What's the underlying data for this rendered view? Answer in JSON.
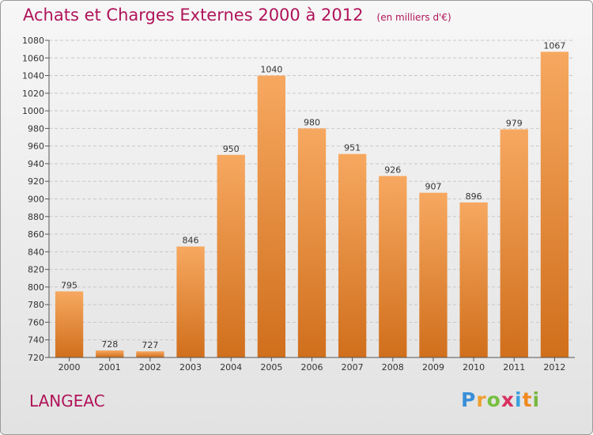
{
  "title": "Achats et Charges Externes 2000 à 2012",
  "unit": "(en milliers d'€)",
  "place": "LANGEAC",
  "logo": {
    "letters": [
      "P",
      "r",
      "o",
      "x",
      "i",
      "t",
      "i"
    ],
    "colors": [
      "#3a8fd8",
      "#f0a030",
      "#78c040",
      "#d83060",
      "#3aa0e0",
      "#f08a20",
      "#78b840"
    ]
  },
  "colors": {
    "bar_top": "#f7a860",
    "bar_bottom": "#d06f1c",
    "title": "#b0145a"
  },
  "chart_data": {
    "type": "bar",
    "categories": [
      "2000",
      "2001",
      "2002",
      "2003",
      "2004",
      "2005",
      "2006",
      "2007",
      "2008",
      "2009",
      "2010",
      "2011",
      "2012"
    ],
    "values": [
      795,
      728,
      727,
      846,
      950,
      1040,
      980,
      951,
      926,
      907,
      896,
      979,
      1067
    ],
    "title": "Achats et Charges Externes 2000 à 2012",
    "unit": "(en milliers d'€)",
    "ylim": [
      720,
      1080
    ],
    "yticks": [
      720,
      740,
      760,
      780,
      800,
      820,
      840,
      860,
      880,
      900,
      920,
      940,
      960,
      980,
      1000,
      1020,
      1040,
      1060,
      1080
    ],
    "grid": true,
    "data_labels": true
  }
}
